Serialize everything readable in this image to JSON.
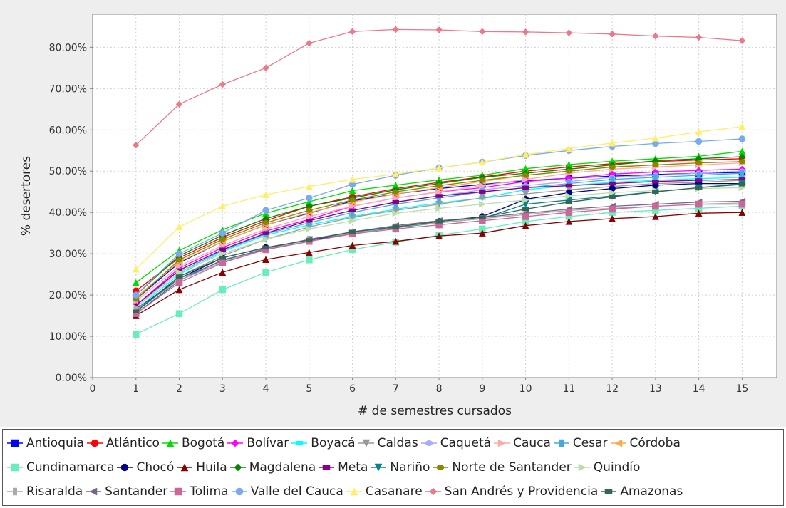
{
  "chart_data": {
    "type": "line",
    "xlabel": "# de semestres cursados",
    "ylabel": "% desertores",
    "xlim": [
      0,
      15.8
    ],
    "ylim": [
      0,
      88
    ],
    "x_ticks": [
      0,
      1,
      2,
      3,
      4,
      5,
      6,
      7,
      8,
      9,
      10,
      11,
      12,
      13,
      14,
      15
    ],
    "y_ticks": [
      0,
      10,
      20,
      30,
      40,
      50,
      60,
      70,
      80
    ],
    "y_tick_labels": [
      "0.00%",
      "10.00%",
      "20.00%",
      "30.00%",
      "40.00%",
      "50.00%",
      "60.00%",
      "70.00%",
      "80.00%"
    ],
    "grid": true,
    "legend_position": "bottom",
    "x": [
      1,
      2,
      3,
      4,
      5,
      6,
      7,
      8,
      9,
      10,
      11,
      12,
      13,
      14,
      15
    ],
    "series": [
      {
        "name": "Antioquia",
        "color": "#0000ff",
        "marker": "square",
        "values": [
          19.0,
          27.8,
          33.0,
          37.0,
          39.8,
          42.8,
          44.5,
          45.8,
          46.8,
          47.7,
          48.3,
          48.8,
          49.2,
          49.5,
          49.7
        ]
      },
      {
        "name": "Atlántico",
        "color": "#ff0000",
        "marker": "circle",
        "values": [
          21.0,
          29.0,
          34.0,
          38.0,
          41.5,
          43.8,
          45.8,
          47.3,
          48.6,
          50.0,
          51.0,
          51.8,
          52.3,
          52.7,
          53.0
        ]
      },
      {
        "name": "Bogotá",
        "color": "#00dd00",
        "marker": "triangle-up",
        "values": [
          23.0,
          30.8,
          35.8,
          39.8,
          42.6,
          45.3,
          46.6,
          47.9,
          49.0,
          50.6,
          51.6,
          52.4,
          53.0,
          53.6,
          54.8
        ]
      },
      {
        "name": "Bolívar",
        "color": "#ff00ff",
        "marker": "diamond",
        "values": [
          17.5,
          26.5,
          31.5,
          35.5,
          38.3,
          41.5,
          43.5,
          45.0,
          46.0,
          47.5,
          48.3,
          49.3,
          49.8,
          50.2,
          50.5
        ]
      },
      {
        "name": "Boyacá",
        "color": "#00ffff",
        "marker": "rect-h",
        "values": [
          16.5,
          25.0,
          30.5,
          34.5,
          37.0,
          39.0,
          40.8,
          42.3,
          43.5,
          45.5,
          46.5,
          47.3,
          47.8,
          48.2,
          48.5
        ]
      },
      {
        "name": "Caldas",
        "color": "#999999",
        "marker": "triangle-down",
        "values": [
          16.0,
          24.5,
          29.5,
          33.5,
          36.5,
          38.8,
          40.5,
          42.0,
          43.5,
          44.5,
          45.5,
          46.3,
          47.0,
          47.3,
          47.8
        ]
      },
      {
        "name": "Caquetá",
        "color": "#aaaaff",
        "marker": "ellipse",
        "values": [
          17.0,
          26.0,
          31.0,
          35.0,
          38.0,
          40.5,
          42.5,
          44.0,
          45.5,
          46.5,
          47.5,
          48.5,
          49.0,
          49.5,
          50.0
        ]
      },
      {
        "name": "Cauca",
        "color": "#ffaaaa",
        "marker": "triangle-right",
        "values": [
          18.5,
          27.0,
          32.0,
          36.0,
          39.0,
          41.5,
          43.5,
          45.0,
          46.5,
          48.0,
          49.5,
          50.5,
          51.0,
          51.5,
          52.0
        ]
      },
      {
        "name": "Cesar",
        "color": "#44aadd",
        "marker": "rect-v",
        "values": [
          17.0,
          25.5,
          30.8,
          34.8,
          37.5,
          40.0,
          42.0,
          43.5,
          45.0,
          46.0,
          47.0,
          48.0,
          48.5,
          49.0,
          49.5
        ]
      },
      {
        "name": "Córdoba",
        "color": "#ffaa44",
        "marker": "triangle-left",
        "values": [
          19.5,
          28.0,
          33.0,
          37.0,
          40.0,
          42.5,
          44.5,
          46.0,
          47.5,
          49.0,
          50.0,
          51.0,
          51.5,
          52.0,
          52.3
        ]
      },
      {
        "name": "Cundinamarca",
        "color": "#66eebb",
        "marker": "square",
        "values": [
          10.5,
          15.5,
          21.3,
          25.5,
          28.5,
          31.0,
          32.8,
          34.5,
          36.0,
          37.8,
          39.0,
          40.0,
          40.5,
          41.0,
          41.5
        ]
      },
      {
        "name": "Chocó",
        "color": "#000088",
        "marker": "circle",
        "values": [
          16.5,
          24.0,
          29.0,
          31.5,
          33.3,
          35.0,
          36.5,
          37.8,
          39.0,
          43.2,
          44.8,
          45.8,
          46.6,
          47.0,
          47.0
        ]
      },
      {
        "name": "Huila",
        "color": "#880000",
        "marker": "triangle-up",
        "values": [
          15.0,
          21.3,
          25.5,
          28.6,
          30.3,
          32.0,
          33.0,
          34.3,
          35.0,
          36.8,
          37.8,
          38.5,
          39.0,
          39.8,
          40.0
        ]
      },
      {
        "name": "Magdalena",
        "color": "#008800",
        "marker": "diamond",
        "values": [
          20.0,
          29.5,
          34.5,
          38.5,
          41.5,
          43.5,
          45.5,
          47.0,
          48.5,
          49.5,
          50.5,
          51.5,
          52.5,
          53.0,
          53.5
        ]
      },
      {
        "name": "Meta",
        "color": "#880088",
        "marker": "rect-h",
        "values": [
          17.5,
          26.0,
          31.0,
          35.0,
          38.0,
          40.5,
          42.5,
          44.0,
          45.0,
          46.0,
          46.5,
          47.0,
          47.5,
          47.8,
          48.0
        ]
      },
      {
        "name": "Nariño",
        "color": "#008888",
        "marker": "triangle-down",
        "values": [
          15.5,
          23.5,
          28.5,
          31.0,
          33.0,
          35.0,
          36.3,
          37.5,
          38.5,
          42.0,
          43.0,
          44.0,
          45.0,
          46.0,
          47.0
        ]
      },
      {
        "name": "Norte de Santander",
        "color": "#888800",
        "marker": "ellipse",
        "values": [
          19.0,
          28.5,
          33.5,
          37.5,
          40.5,
          43.0,
          45.0,
          46.5,
          47.8,
          49.0,
          50.0,
          51.0,
          51.5,
          52.0,
          52.3
        ]
      },
      {
        "name": "Quindío",
        "color": "#bbddaa",
        "marker": "triangle-right",
        "values": [
          17.0,
          25.5,
          30.0,
          33.5,
          36.0,
          38.0,
          39.8,
          41.0,
          42.0,
          43.0,
          44.0,
          44.8,
          45.3,
          45.8,
          46.0
        ]
      },
      {
        "name": "Risaralda",
        "color": "#aaaaaa",
        "marker": "rect-v",
        "values": [
          16.5,
          23.5,
          28.0,
          31.0,
          33.5,
          35.0,
          36.5,
          37.5,
          38.5,
          39.5,
          40.5,
          41.0,
          41.5,
          42.0,
          42.3
        ]
      },
      {
        "name": "Santander",
        "color": "#776688",
        "marker": "triangle-left",
        "values": [
          16.0,
          24.0,
          28.3,
          31.3,
          33.5,
          35.3,
          36.8,
          38.0,
          38.8,
          39.8,
          40.8,
          41.5,
          42.0,
          42.5,
          42.7
        ]
      },
      {
        "name": "Tolima",
        "color": "#cc6699",
        "marker": "square",
        "values": [
          15.5,
          23.0,
          27.8,
          31.0,
          33.0,
          34.8,
          36.0,
          37.0,
          38.0,
          39.0,
          40.0,
          40.8,
          41.5,
          42.0,
          42.0
        ]
      },
      {
        "name": "Valle del Cauca",
        "color": "#77aaee",
        "marker": "circle",
        "values": [
          20.0,
          30.0,
          35.0,
          40.5,
          43.5,
          46.8,
          49.0,
          50.8,
          52.2,
          53.8,
          55.0,
          56.0,
          56.7,
          57.2,
          57.8
        ]
      },
      {
        "name": "Casanare",
        "color": "#ffee66",
        "marker": "triangle-up",
        "values": [
          26.3,
          36.5,
          41.5,
          44.3,
          46.3,
          48.0,
          49.3,
          50.8,
          52.2,
          54.0,
          55.5,
          56.8,
          58.0,
          59.5,
          60.8
        ]
      },
      {
        "name": "San Andrés y Providencia",
        "color": "#ee7788",
        "marker": "diamond",
        "values": [
          56.3,
          66.2,
          71.0,
          75.0,
          81.0,
          83.8,
          84.3,
          84.2,
          83.8,
          83.7,
          83.5,
          83.2,
          82.7,
          82.4,
          81.6
        ]
      },
      {
        "name": "Amazonas",
        "color": "#336655",
        "marker": "rect-h",
        "values": [
          16.0,
          24.5,
          29.0,
          31.5,
          33.3,
          35.3,
          36.5,
          37.8,
          38.8,
          40.8,
          42.5,
          43.8,
          45.0,
          46.0,
          46.8
        ]
      }
    ]
  },
  "legend": {
    "rows": [
      [
        0,
        1,
        2,
        3,
        4,
        5,
        6,
        7,
        8,
        9
      ],
      [
        10,
        11,
        12,
        13,
        14,
        15,
        16,
        17
      ],
      [
        18,
        19,
        20,
        21,
        22,
        23,
        24
      ]
    ]
  }
}
